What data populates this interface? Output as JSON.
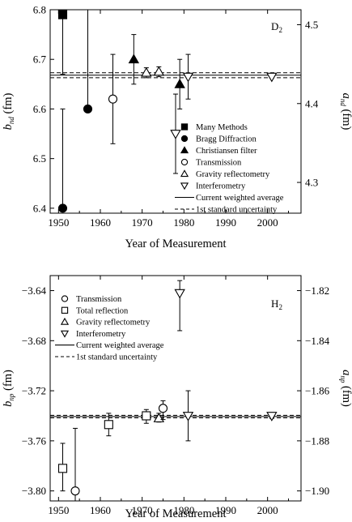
{
  "chart_data": [
    {
      "type": "scatter",
      "panel_label": "D",
      "panel_label_sub": "2",
      "xlabel": "Year of Measurement",
      "ylabel": "b",
      "ylabel_sub": "nd",
      "ylabel_unit": "(fm)",
      "y2label": "a",
      "y2label_sub": "nd",
      "y2label_unit": "(fm)",
      "xlim": [
        1948,
        2008
      ],
      "ylim": [
        6.39,
        6.8
      ],
      "y2lim": [
        4.261,
        4.519
      ],
      "xticks": [
        1950,
        1960,
        1970,
        1980,
        1990,
        2000
      ],
      "yticks": [
        6.4,
        6.5,
        6.6,
        6.7,
        6.8
      ],
      "y2ticks": [
        4.3,
        4.4,
        4.5
      ],
      "average": 6.668,
      "uncertainty": [
        6.663,
        6.673
      ],
      "legend": [
        {
          "marker": "filled-square",
          "label": "Many Methods"
        },
        {
          "marker": "filled-circle",
          "label": "Bragg Diffraction"
        },
        {
          "marker": "filled-triangle",
          "label": "Christiansen filter"
        },
        {
          "marker": "open-circle",
          "label": "Transmission"
        },
        {
          "marker": "open-triangle",
          "label": "Gravity reflectometry"
        },
        {
          "marker": "open-down-triangle",
          "label": "Interferometry"
        },
        {
          "marker": "solid-line",
          "label": "Current weighted average"
        },
        {
          "marker": "dashed-line",
          "label": "1st standard uncertainty"
        }
      ],
      "points": [
        {
          "x": 1951,
          "y": 6.79,
          "lo": 6.67,
          "hi": 6.79,
          "marker": "filled-square"
        },
        {
          "x": 1951,
          "y": 6.4,
          "lo": 6.4,
          "hi": 6.6,
          "marker": "filled-circle"
        },
        {
          "x": 1957,
          "y": 6.6,
          "lo": 6.6,
          "hi": 6.8,
          "marker": "filled-circle"
        },
        {
          "x": 1963,
          "y": 6.62,
          "lo": 6.53,
          "hi": 6.71,
          "marker": "open-circle"
        },
        {
          "x": 1968,
          "y": 6.7,
          "lo": 6.65,
          "hi": 6.75,
          "marker": "filled-triangle"
        },
        {
          "x": 1971,
          "y": 6.673,
          "lo": 6.663,
          "hi": 6.683,
          "marker": "open-triangle"
        },
        {
          "x": 1974,
          "y": 6.675,
          "lo": 6.665,
          "hi": 6.685,
          "marker": "open-triangle"
        },
        {
          "x": 1979,
          "y": 6.65,
          "lo": 6.6,
          "hi": 6.7,
          "marker": "filled-triangle"
        },
        {
          "x": 1978,
          "y": 6.55,
          "lo": 6.47,
          "hi": 6.63,
          "marker": "open-down-triangle"
        },
        {
          "x": 1981,
          "y": 6.665,
          "lo": 6.62,
          "hi": 6.71,
          "marker": "open-down-triangle"
        },
        {
          "x": 2001,
          "y": 6.665,
          "lo": 6.663,
          "hi": 6.668,
          "marker": "open-down-triangle"
        }
      ]
    },
    {
      "type": "scatter",
      "panel_label": "H",
      "panel_label_sub": "2",
      "xlabel": "Year of Measurement",
      "ylabel": "b",
      "ylabel_sub": "np",
      "ylabel_unit": "(fm)",
      "y2label": "a",
      "y2label_sub": "np",
      "y2label_unit": "(fm)",
      "xlim": [
        1948,
        2008
      ],
      "ylim": [
        -3.808,
        -3.628
      ],
      "y2lim": [
        -1.904,
        -1.814
      ],
      "xticks": [
        1950,
        1960,
        1970,
        1980,
        1990,
        2000
      ],
      "yticks": [
        -3.64,
        -3.68,
        -3.72,
        -3.76,
        -3.8
      ],
      "y2ticks": [
        -1.82,
        -1.84,
        -1.86,
        -1.88,
        -1.9
      ],
      "average": -3.7406,
      "uncertainty": [
        -3.7396,
        -3.7416
      ],
      "legend": [
        {
          "marker": "open-circle",
          "label": "Transmission"
        },
        {
          "marker": "open-square",
          "label": "Total reflection"
        },
        {
          "marker": "open-triangle",
          "label": "Gravity reflectometry"
        },
        {
          "marker": "open-down-triangle",
          "label": "Interferometry"
        },
        {
          "marker": "solid-line",
          "label": "Current weighted average"
        },
        {
          "marker": "dashed-line",
          "label": "1st standard uncertainty"
        }
      ],
      "points": [
        {
          "x": 1951,
          "y": -3.782,
          "lo": -3.8,
          "hi": -3.762,
          "marker": "open-square"
        },
        {
          "x": 1954,
          "y": -3.8,
          "lo": -3.808,
          "hi": -3.75,
          "marker": "open-circle"
        },
        {
          "x": 1962,
          "y": -3.747,
          "lo": -3.756,
          "hi": -3.738,
          "marker": "open-square"
        },
        {
          "x": 1971,
          "y": -3.74,
          "lo": -3.746,
          "hi": -3.735,
          "marker": "open-square"
        },
        {
          "x": 1974,
          "y": -3.742,
          "lo": -3.745,
          "hi": -3.738,
          "marker": "open-triangle"
        },
        {
          "x": 1975,
          "y": -3.734,
          "lo": -3.743,
          "hi": -3.728,
          "marker": "open-circle"
        },
        {
          "x": 1979,
          "y": -3.642,
          "lo": -3.672,
          "hi": -3.632,
          "marker": "open-down-triangle"
        },
        {
          "x": 1981,
          "y": -3.74,
          "lo": -3.76,
          "hi": -3.72,
          "marker": "open-down-triangle"
        },
        {
          "x": 2001,
          "y": -3.74,
          "lo": -3.742,
          "hi": -3.738,
          "marker": "open-down-triangle"
        }
      ]
    }
  ]
}
